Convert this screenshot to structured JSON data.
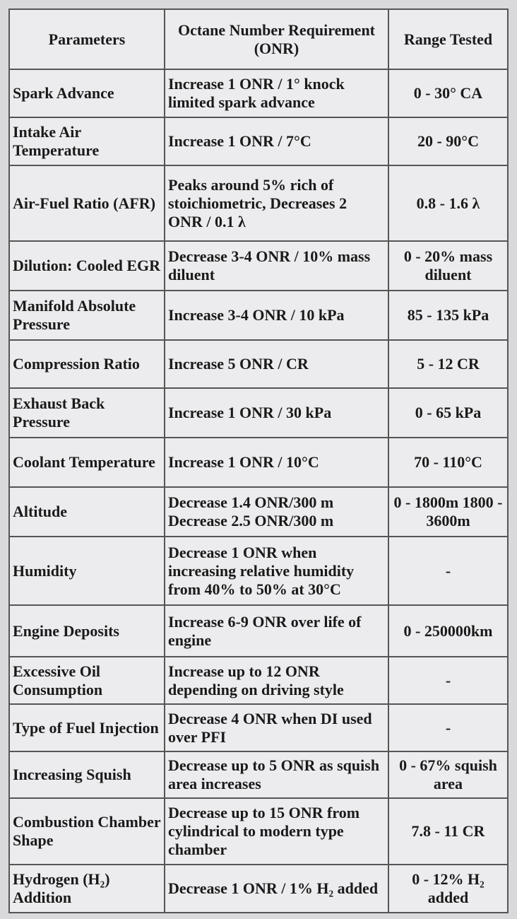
{
  "table": {
    "header": [
      "Parameters",
      "Octane Number Requirement (ONR)",
      "Range Tested"
    ],
    "rows": [
      [
        "Spark Advance",
        "Increase 1 ONR / 1° knock limited spark advance",
        "0 - 30° CA"
      ],
      [
        "Intake Air Temperature",
        "Increase 1 ONR / 7°C",
        "20 - 90°C"
      ],
      [
        "Air-Fuel Ratio (AFR)",
        "Peaks around 5% rich of stoichiometric, Decreases 2 ONR / 0.1 λ",
        "0.8 - 1.6 λ"
      ],
      [
        "Dilution: Cooled EGR",
        "Decrease 3-4 ONR / 10% mass diluent",
        "0 - 20% mass diluent"
      ],
      [
        "Manifold Absolute Pressure",
        "Increase 3-4 ONR / 10 kPa",
        "85 - 135 kPa"
      ],
      [
        "Compression Ratio",
        "Increase 5 ONR / CR",
        "5 - 12 CR"
      ],
      [
        "Exhaust Back Pressure",
        "Increase 1 ONR / 30 kPa",
        "0 - 65 kPa"
      ],
      [
        "Coolant Temperature",
        "Increase 1 ONR / 10°C",
        "70 - 110°C"
      ],
      [
        "Altitude",
        "Decrease 1.4 ONR/300 m Decrease 2.5 ONR/300 m",
        "0 - 1800m 1800 - 3600m"
      ],
      [
        "Humidity",
        "Decrease 1 ONR when increasing relative humidity from 40% to 50% at 30°C",
        "-"
      ],
      [
        "Engine Deposits",
        "Increase 6-9 ONR over life of engine",
        "0 - 250000km"
      ],
      [
        "Excessive Oil Consumption",
        "Increase up to 12 ONR depending on driving style",
        "-"
      ],
      [
        "Type of Fuel Injection",
        "Decrease 4 ONR when DI used over PFI",
        "-"
      ],
      [
        "Increasing Squish",
        "Decrease up to 5 ONR as squish area increases",
        "0 - 67% squish area"
      ],
      [
        "Combustion Chamber Shape",
        "Decrease up to 15 ONR from cylindrical to modern type chamber",
        "7.8 - 11 CR"
      ],
      [
        "Hydrogen (H₂) Addition",
        "Decrease 1 ONR / 1% H₂ added",
        "0 - 12% H₂ added"
      ]
    ]
  }
}
